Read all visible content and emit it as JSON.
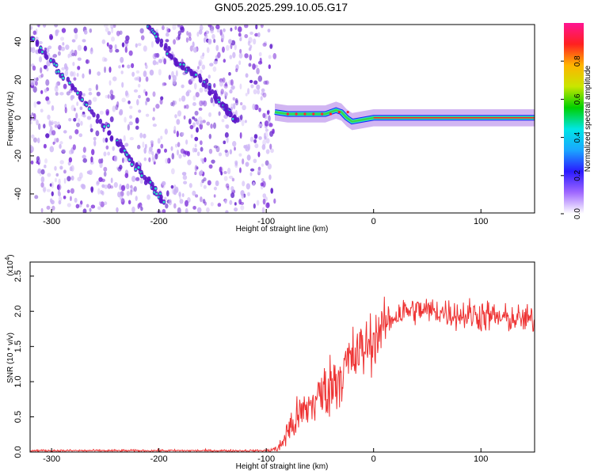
{
  "title": "GN05.2025.299.10.05.G17",
  "colors": {
    "snr_line": "#ee3333",
    "purple": "#7a2bd9",
    "dark_purple": "#5b16c9",
    "light_purple": "#cbb2f5",
    "trace_cyan": "#27e0c8",
    "trace_green": "#3bd34a",
    "trace_red": "#ff1f2f"
  },
  "chart_data": [
    {
      "type": "heatmap",
      "name": "spectrogram",
      "xlabel": "Height of straight line (km)",
      "ylabel": "Frequency (Hz)",
      "xlim": [
        -320,
        150
      ],
      "ylim": [
        -50,
        49
      ],
      "xticks": [
        -300,
        -200,
        -100,
        0,
        100
      ],
      "xtick_labels": [
        "-300",
        "-200",
        "-100",
        "0",
        "100"
      ],
      "yticks": [
        -40,
        -20,
        0,
        20,
        40
      ],
      "ytick_labels": [
        "-40",
        "-20",
        "0",
        "20",
        "40"
      ],
      "noise_region_x": [
        -320,
        -92
      ],
      "diagonal_tracks": [
        {
          "name": "track-1",
          "points": [
            [
              -318,
              42
            ],
            [
              -280,
              16
            ],
            [
              -240,
              -12
            ],
            [
              -215,
              -30
            ],
            [
              -195,
              -45
            ]
          ]
        },
        {
          "name": "track-2",
          "points": [
            [
              -210,
              48
            ],
            [
              -185,
              30
            ],
            [
              -160,
              20
            ],
            [
              -140,
              6
            ],
            [
              -128,
              -2
            ]
          ]
        }
      ],
      "signal_trace": [
        [
          -92,
          3
        ],
        [
          -80,
          2
        ],
        [
          -60,
          2
        ],
        [
          -45,
          2
        ],
        [
          -35,
          4
        ],
        [
          -30,
          3
        ],
        [
          -25,
          0
        ],
        [
          -20,
          -2
        ],
        [
          -10,
          -1
        ],
        [
          0,
          0
        ],
        [
          20,
          0
        ],
        [
          60,
          0
        ],
        [
          100,
          0
        ],
        [
          150,
          0
        ]
      ],
      "colorbar": {
        "label": "Normalized spectral amplitude",
        "range": [
          0.0,
          1.0
        ],
        "ticks": [
          0.0,
          0.2,
          0.4,
          0.6,
          0.8
        ],
        "tick_labels": [
          "0.0",
          "0.2",
          "0.4",
          "0.6",
          "0.8"
        ],
        "stops": [
          "#ffffff",
          "#a068ff",
          "#2a1aff",
          "#1aa6ff",
          "#00e5e5",
          "#00d000",
          "#c8e600",
          "#ffb400",
          "#ff2020",
          "#ff1493"
        ]
      }
    },
    {
      "type": "line",
      "name": "snr",
      "xlabel": "Height of straight line (km)",
      "ylabel": "SNR (10 * v/v)",
      "multiplier": "(x10",
      "multiplier_exp": "4",
      "multiplier_close": ")",
      "xlim": [
        -320,
        150
      ],
      "ylim": [
        0,
        2.7
      ],
      "xticks": [
        -300,
        -200,
        -100,
        0,
        100
      ],
      "xtick_labels": [
        "-300",
        "-200",
        "-100",
        "0",
        "100"
      ],
      "yticks": [
        0.0,
        0.5,
        1.0,
        1.5,
        2.0,
        2.5
      ],
      "ytick_labels": [
        "0.0",
        "0.5",
        "1.0",
        "1.5",
        "2.0",
        "2.5"
      ],
      "envelope_x": [
        -320,
        -100,
        -88,
        -80,
        -70,
        -60,
        -50,
        -40,
        -30,
        -20,
        -10,
        0,
        10,
        20,
        30,
        40,
        60,
        80,
        100,
        120,
        150
      ],
      "envelope_mean": [
        0.02,
        0.02,
        0.05,
        0.3,
        0.5,
        0.65,
        0.8,
        0.95,
        1.15,
        1.3,
        1.45,
        1.6,
        1.8,
        1.95,
        2.0,
        2.02,
        2.0,
        1.95,
        1.95,
        1.9,
        1.88
      ],
      "envelope_spread": [
        0.015,
        0.015,
        0.08,
        0.25,
        0.3,
        0.32,
        0.4,
        0.45,
        0.5,
        0.5,
        0.45,
        0.4,
        0.3,
        0.25,
        0.22,
        0.2,
        0.2,
        0.22,
        0.25,
        0.2,
        0.2
      ]
    }
  ]
}
